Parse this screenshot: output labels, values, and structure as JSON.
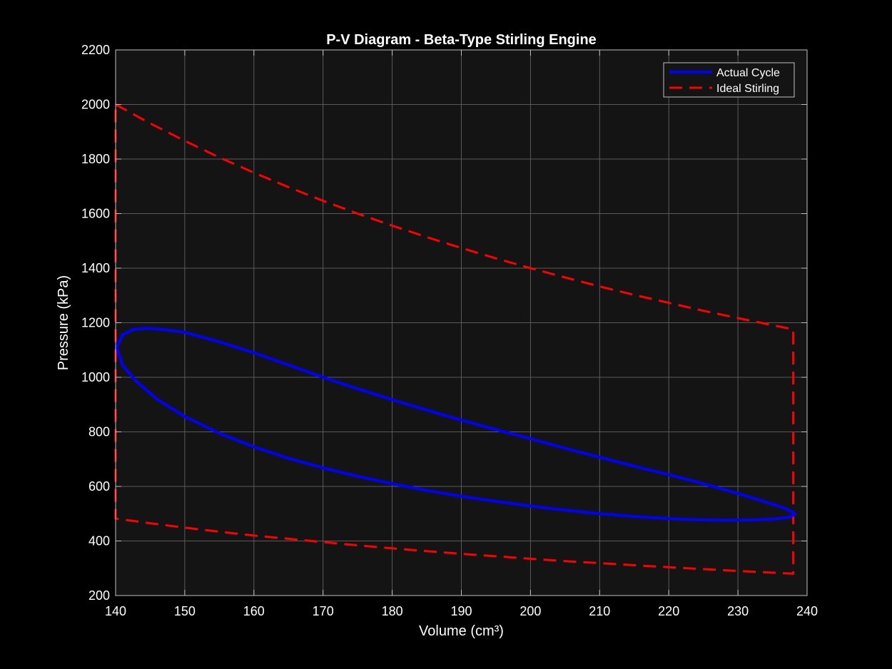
{
  "chart_data": {
    "type": "line",
    "title": "P-V Diagram - Beta-Type Stirling Engine",
    "xlabel": "Volume (cm³)",
    "ylabel": "Pressure (kPa)",
    "xlim": [
      140,
      240
    ],
    "ylim": [
      200,
      2200
    ],
    "xticks": [
      140,
      150,
      160,
      170,
      180,
      190,
      200,
      210,
      220,
      230,
      240
    ],
    "yticks": [
      200,
      400,
      600,
      800,
      1000,
      1200,
      1400,
      1600,
      1800,
      2000,
      2200
    ],
    "grid": true,
    "legend_position": "top-right",
    "colors": {
      "background": "#000000",
      "axes_background": "#141414",
      "grid": "#5a5a5a",
      "axes": "#bfbfbf",
      "text": "#ffffff"
    },
    "series": [
      {
        "name": "Actual Cycle",
        "color": "#0000ff",
        "style": "solid",
        "closed": true,
        "x": [
          140.2,
          141.0,
          142.5,
          144.5,
          147.0,
          150.0,
          155.0,
          160.0,
          165.0,
          170.0,
          175.0,
          180.0,
          185.0,
          190.0,
          195.0,
          200.0,
          205.0,
          210.0,
          215.0,
          220.0,
          225.0,
          230.0,
          234.0,
          237.0,
          238.3,
          237.5,
          235.0,
          232.0,
          228.0,
          224.0,
          220.0,
          215.0,
          210.0,
          205.0,
          200.0,
          195.0,
          190.0,
          185.0,
          180.0,
          175.0,
          170.0,
          165.0,
          160.0,
          155.0,
          150.0,
          146.0,
          143.0,
          141.0,
          140.2
        ],
        "y": [
          1110,
          1155,
          1175,
          1180,
          1175,
          1165,
          1130,
          1090,
          1045,
          1000,
          958,
          918,
          880,
          843,
          808,
          775,
          740,
          707,
          674,
          643,
          610,
          574,
          543,
          518,
          500,
          487,
          480,
          477,
          476,
          478,
          482,
          490,
          500,
          513,
          528,
          545,
          564,
          585,
          610,
          637,
          668,
          703,
          745,
          795,
          856,
          920,
          985,
          1045,
          1110
        ]
      },
      {
        "name": "Ideal Stirling",
        "color": "#ff0000",
        "style": "dashed",
        "closed": true,
        "x": [
          140,
          145,
          150,
          155,
          160,
          165,
          170,
          175,
          180,
          185,
          190,
          195,
          200,
          205,
          210,
          215,
          220,
          225,
          230,
          235,
          238,
          238,
          235,
          230,
          225,
          220,
          215,
          210,
          205,
          200,
          195,
          190,
          185,
          180,
          175,
          170,
          165,
          160,
          155,
          150,
          145,
          140,
          140
        ],
        "y": [
          2000,
          1931,
          1867,
          1806,
          1750,
          1697,
          1647,
          1600,
          1556,
          1514,
          1474,
          1436,
          1400,
          1366,
          1333,
          1302,
          1273,
          1244,
          1217,
          1191,
          1176,
          280,
          284,
          290,
          297,
          304,
          311,
          319,
          326,
          335,
          344,
          353,
          363,
          373,
          384,
          396,
          408,
          420,
          434,
          449,
          465,
          482,
          2000
        ]
      }
    ]
  }
}
